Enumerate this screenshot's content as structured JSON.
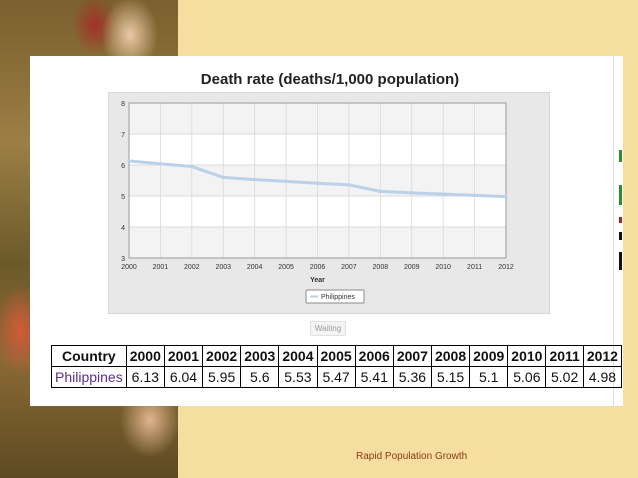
{
  "chart_data": {
    "type": "line",
    "title": "Death rate (deaths/1,000 population)",
    "xlabel": "Year",
    "ylabel": "",
    "x": [
      2000,
      2001,
      2002,
      2003,
      2004,
      2005,
      2006,
      2007,
      2008,
      2009,
      2010,
      2011,
      2012
    ],
    "ylim": [
      3,
      8
    ],
    "yticks": [
      3,
      4,
      5,
      6,
      7,
      8
    ],
    "grid": true,
    "legend_position": "bottom-center",
    "series": [
      {
        "name": "Philippines",
        "color": "#b9d2ea",
        "values": [
          6.13,
          6.04,
          5.95,
          5.6,
          5.53,
          5.47,
          5.41,
          5.36,
          5.15,
          5.1,
          5.06,
          5.02,
          4.98
        ]
      }
    ]
  },
  "waiting_label": "Waiting",
  "table": {
    "header": [
      "Country",
      "2000",
      "2001",
      "2002",
      "2003",
      "2004",
      "2005",
      "2006",
      "2007",
      "2008",
      "2009",
      "2010",
      "2011",
      "2012"
    ],
    "rows": [
      [
        "Philippines",
        "6.13",
        "6.04",
        "5.95",
        "5.6",
        "5.53",
        "5.47",
        "5.41",
        "5.36",
        "5.15",
        "5.1",
        "5.06",
        "5.02",
        "4.98"
      ]
    ]
  },
  "footer": "Rapid Population Growth",
  "colors": {
    "background": "#f5dea0",
    "line": "#b9d2ea",
    "link": "#5b2c8c",
    "footer": "#8a3a12"
  }
}
